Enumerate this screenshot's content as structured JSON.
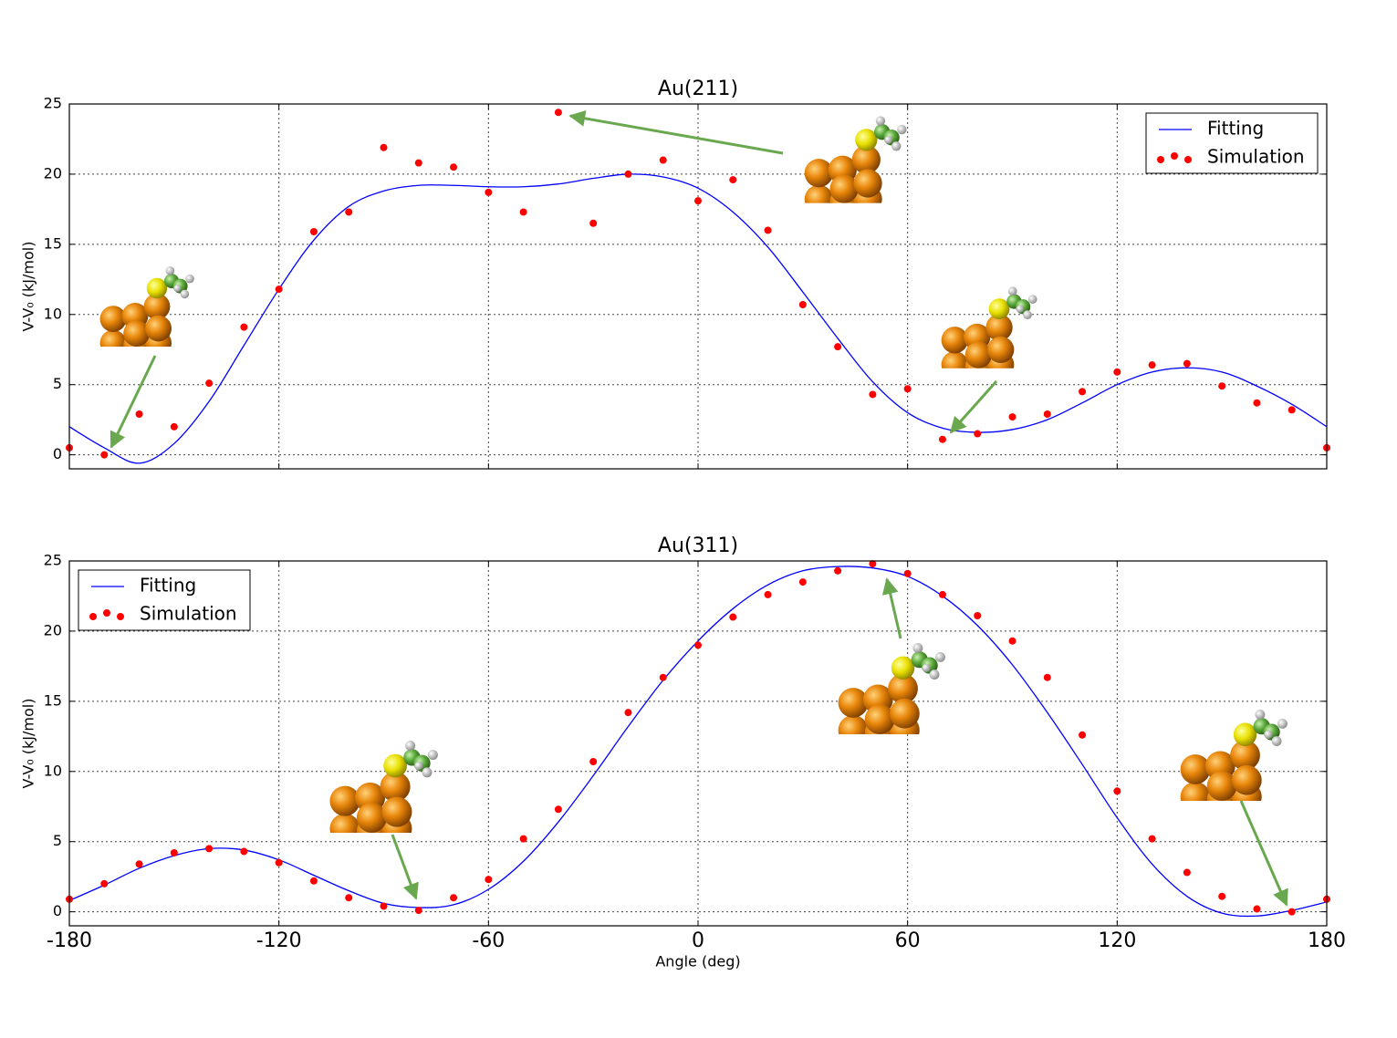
{
  "chart_data": [
    {
      "type": "line",
      "title": "Au(211)",
      "ylabel": "V-V₀  (kJ/mol)",
      "x": [
        -180,
        -170,
        -160,
        -150,
        -140,
        -130,
        -120,
        -110,
        -100,
        -90,
        -80,
        -70,
        -60,
        -50,
        -40,
        -30,
        -20,
        -10,
        0,
        10,
        20,
        30,
        40,
        50,
        60,
        70,
        80,
        90,
        100,
        110,
        120,
        130,
        140,
        150,
        160,
        170,
        180
      ],
      "series": [
        {
          "name": "Fitting",
          "color": "#0000ff",
          "mode": "line",
          "values": [
            2.0,
            0.5,
            -0.6,
            0.8,
            3.8,
            7.8,
            11.8,
            15.3,
            17.7,
            18.8,
            19.2,
            19.2,
            19.1,
            19.1,
            19.3,
            19.7,
            20.0,
            19.8,
            19.0,
            17.3,
            14.8,
            11.6,
            8.3,
            5.2,
            3.0,
            1.9,
            1.6,
            1.8,
            2.5,
            3.7,
            5.0,
            5.9,
            6.2,
            5.9,
            4.9,
            3.6,
            2.0
          ]
        },
        {
          "name": "Simulation",
          "color": "#ff0000",
          "mode": "markers",
          "values": [
            0.5,
            0.0,
            2.9,
            2.0,
            5.1,
            9.1,
            11.8,
            15.9,
            17.3,
            21.9,
            20.8,
            20.5,
            18.7,
            17.3,
            24.4,
            16.5,
            20.0,
            21.0,
            18.1,
            19.6,
            16.0,
            10.7,
            7.7,
            4.3,
            4.7,
            1.1,
            1.5,
            2.7,
            2.9,
            4.5,
            5.9,
            6.4,
            6.5,
            4.9,
            3.7,
            3.2,
            0.5
          ]
        }
      ],
      "xlim": [
        -180,
        180
      ],
      "xticks": [
        -180,
        -120,
        -60,
        0,
        60,
        120,
        180
      ],
      "show_xtick_labels": false,
      "ylim": [
        -1,
        25
      ],
      "yticks": [
        0,
        5,
        10,
        15,
        20,
        25
      ],
      "grid": true,
      "legend": "upper right"
    },
    {
      "type": "line",
      "title": "Au(311)",
      "ylabel": "V-V₀  (kJ/mol)",
      "xlabel": "Angle (deg)",
      "x": [
        -180,
        -170,
        -160,
        -150,
        -140,
        -130,
        -120,
        -110,
        -100,
        -90,
        -80,
        -70,
        -60,
        -50,
        -40,
        -30,
        -20,
        -10,
        0,
        10,
        20,
        30,
        40,
        50,
        60,
        70,
        80,
        90,
        100,
        110,
        120,
        130,
        140,
        150,
        160,
        170,
        180
      ],
      "series": [
        {
          "name": "Fitting",
          "color": "#0000ff",
          "mode": "line",
          "values": [
            0.8,
            1.9,
            3.1,
            4.0,
            4.5,
            4.4,
            3.7,
            2.6,
            1.5,
            0.6,
            0.3,
            0.5,
            1.6,
            3.6,
            6.4,
            9.7,
            13.2,
            16.5,
            19.3,
            21.6,
            23.3,
            24.3,
            24.6,
            24.5,
            23.9,
            22.5,
            20.4,
            17.6,
            14.2,
            10.5,
            6.7,
            3.4,
            1.1,
            -0.1,
            -0.3,
            0.1,
            0.7
          ]
        },
        {
          "name": "Simulation",
          "color": "#ff0000",
          "mode": "markers",
          "values": [
            0.9,
            2.0,
            3.4,
            4.2,
            4.5,
            4.3,
            3.5,
            2.2,
            1.0,
            0.4,
            0.1,
            1.0,
            2.3,
            5.2,
            7.3,
            10.7,
            14.2,
            16.7,
            19.0,
            21.0,
            22.6,
            23.5,
            24.3,
            24.8,
            24.1,
            22.6,
            21.1,
            19.3,
            16.7,
            12.6,
            8.6,
            5.2,
            2.8,
            1.1,
            0.2,
            0.0,
            0.9
          ]
        }
      ],
      "xlim": [
        -180,
        180
      ],
      "xticks": [
        -180,
        -120,
        -60,
        0,
        60,
        120,
        180
      ],
      "show_xtick_labels": true,
      "ylim": [
        -1,
        25
      ],
      "yticks": [
        0,
        5,
        10,
        15,
        20,
        25
      ],
      "grid": true,
      "legend": "upper left"
    }
  ]
}
